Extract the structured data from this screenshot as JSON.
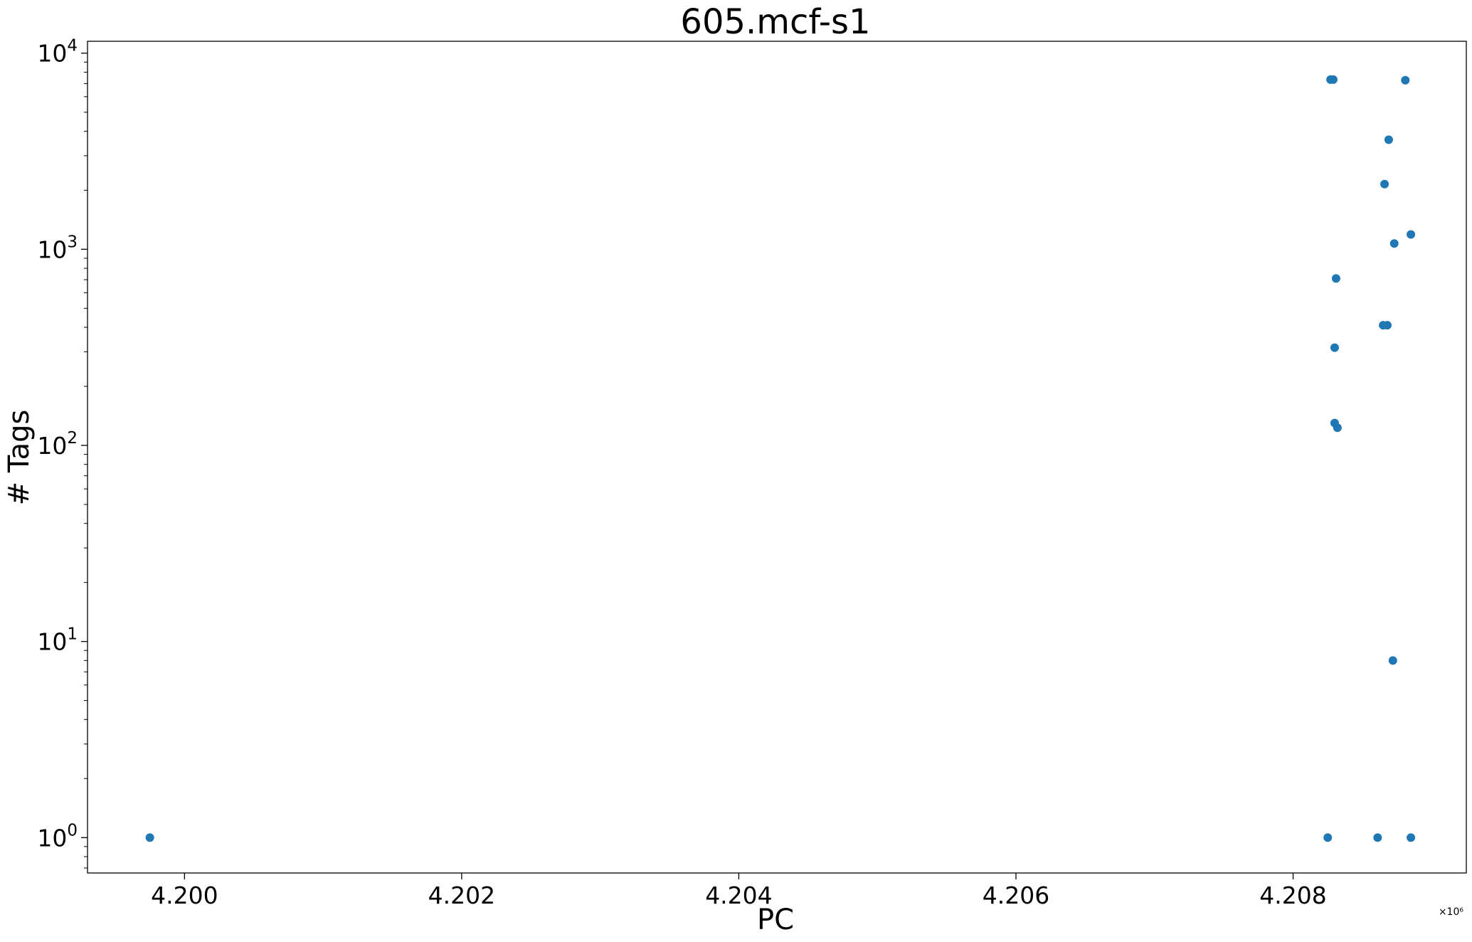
{
  "chart_data": {
    "type": "scatter",
    "title": "605.mcf-s1",
    "xlabel": "PC",
    "ylabel": "# Tags",
    "x_multiplier_label": "×10⁶",
    "x_multiplier": 1000000,
    "xlim": [
      4.1993,
      4.20925
    ],
    "ylim": [
      0.66,
      11500
    ],
    "yscale": "log",
    "grid": false,
    "marker_color": "#1f77b4",
    "x_ticks": [
      {
        "value": 4.2,
        "label": "4.200"
      },
      {
        "value": 4.202,
        "label": "4.202"
      },
      {
        "value": 4.204,
        "label": "4.204"
      },
      {
        "value": 4.206,
        "label": "4.206"
      },
      {
        "value": 4.208,
        "label": "4.208"
      }
    ],
    "y_ticks": [
      {
        "value": 1,
        "base": "10",
        "exp": "0"
      },
      {
        "value": 10,
        "base": "10",
        "exp": "1"
      },
      {
        "value": 100,
        "base": "10",
        "exp": "2"
      },
      {
        "value": 1000,
        "base": "10",
        "exp": "3"
      },
      {
        "value": 10000,
        "base": "10",
        "exp": "4"
      }
    ],
    "points": [
      {
        "x": 4.19975,
        "y": 1
      },
      {
        "x": 4.20825,
        "y": 1
      },
      {
        "x": 4.20861,
        "y": 1
      },
      {
        "x": 4.20885,
        "y": 1
      },
      {
        "x": 4.20872,
        "y": 8
      },
      {
        "x": 4.2083,
        "y": 130
      },
      {
        "x": 4.20832,
        "y": 123
      },
      {
        "x": 4.2083,
        "y": 315
      },
      {
        "x": 4.20865,
        "y": 410
      },
      {
        "x": 4.20868,
        "y": 410
      },
      {
        "x": 4.20831,
        "y": 710
      },
      {
        "x": 4.20873,
        "y": 1070
      },
      {
        "x": 4.20885,
        "y": 1190
      },
      {
        "x": 4.20866,
        "y": 2150
      },
      {
        "x": 4.20869,
        "y": 3620
      },
      {
        "x": 4.20827,
        "y": 7330
      },
      {
        "x": 4.20829,
        "y": 7330
      },
      {
        "x": 4.20881,
        "y": 7280
      }
    ]
  }
}
